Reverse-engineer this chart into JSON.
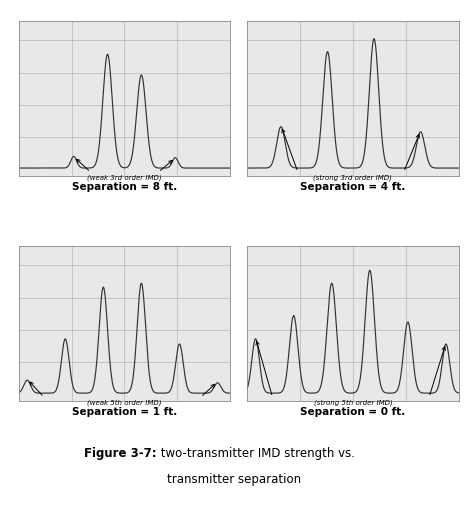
{
  "background_color": "#ffffff",
  "panel_bg": "#e8e8e8",
  "line_color": "#333333",
  "figure_title_bold": "Figure 3-7:",
  "figure_title_normal": " two-transmitter IMD strength vs.",
  "figure_title_line2": "transmitter separation",
  "panel_labels": [
    "Separation = 8 ft.",
    "Separation = 4 ft.",
    "Separation = 1 ft.",
    "Separation = 0 ft."
  ],
  "panel_annotations": [
    "(weak 3rd order IMD)",
    "(strong 3rd order IMD)",
    "(weak 5th order IMD)",
    "(strong 5th order IMD)"
  ],
  "annotation_superscripts": [
    "rd",
    "rd",
    "th",
    "th"
  ],
  "annotation_prefixes": [
    "weak 3",
    "strong 3",
    "weak 5",
    "strong 5"
  ],
  "annotation_suffixes": [
    " order IMD)",
    " order IMD)",
    " order IMD)",
    " order IMD)"
  ]
}
